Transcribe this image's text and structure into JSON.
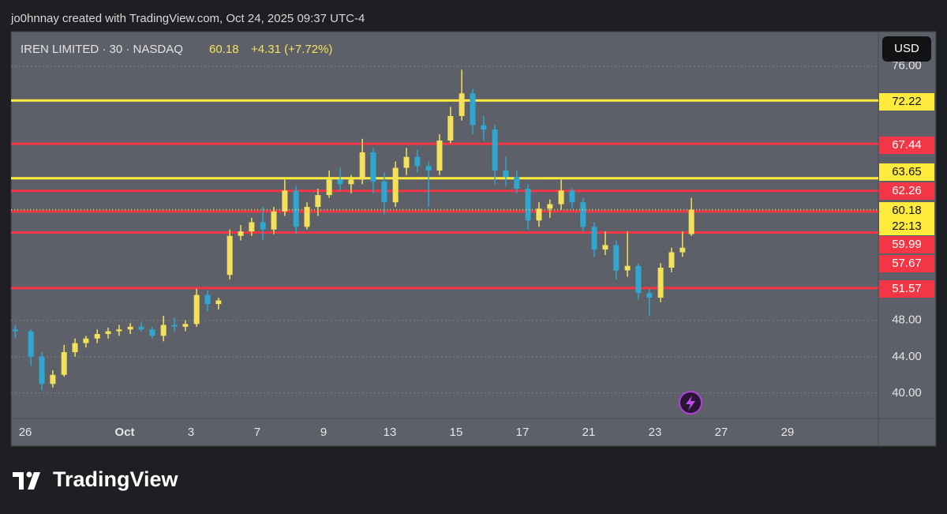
{
  "caption": "jo0hnnay created with TradingView.com, Oct 24, 2025 09:37 UTC-4",
  "brand": "TradingView",
  "chart_data": {
    "type": "candlestick",
    "title": "IREN LIMITED · 30 · NASDAQ",
    "last_price": 60.18,
    "change_label": "+4.31 (+7.72%)",
    "countdown": "22:13",
    "currency": "USD",
    "up_color": "#f3e15b",
    "down_color": "#2fa7cf",
    "grid": true,
    "ylim": [
      37.2,
      79.8
    ],
    "yticks": [
      {
        "value": 40,
        "label": "40.00"
      },
      {
        "value": 44,
        "label": "44.00"
      },
      {
        "value": 48,
        "label": "48.00"
      },
      {
        "value": 76,
        "label": "76.00"
      }
    ],
    "xlim": [
      -0.43,
      25.74
    ],
    "xticks": [
      {
        "value": 0,
        "label": "26"
      },
      {
        "value": 3,
        "label": "Oct"
      },
      {
        "value": 5,
        "label": "3"
      },
      {
        "value": 7,
        "label": "7"
      },
      {
        "value": 9,
        "label": "9"
      },
      {
        "value": 11,
        "label": "13"
      },
      {
        "value": 13,
        "label": "15"
      },
      {
        "value": 15,
        "label": "17"
      },
      {
        "value": 17,
        "label": "21"
      },
      {
        "value": 19,
        "label": "23"
      },
      {
        "value": 21,
        "label": "27"
      },
      {
        "value": 23,
        "label": "29"
      }
    ],
    "levels": [
      {
        "value": 72.22,
        "color": "#ffeb3b"
      },
      {
        "value": 67.44,
        "color": "#f23645"
      },
      {
        "value": 63.65,
        "color": "#ffeb3b"
      },
      {
        "value": 62.26,
        "color": "#f23645"
      },
      {
        "value": 59.99,
        "color": "#f23645"
      },
      {
        "value": 57.67,
        "color": "#f23645"
      },
      {
        "value": 51.57,
        "color": "#f23645"
      }
    ],
    "x": [
      -0.3,
      0.17,
      0.5,
      0.83,
      1.17,
      1.5,
      1.83,
      2.17,
      2.5,
      2.83,
      3.17,
      3.5,
      3.83,
      4.17,
      4.5,
      4.83,
      5.17,
      5.5,
      5.83,
      6.17,
      6.5,
      6.83,
      7.17,
      7.5,
      7.83,
      8.17,
      8.5,
      8.83,
      9.17,
      9.5,
      9.83,
      10.17,
      10.5,
      10.83,
      11.17,
      11.5,
      11.83,
      12.17,
      12.5,
      12.83,
      13.17,
      13.5,
      13.83,
      14.17,
      14.5,
      14.83,
      15.17,
      15.5,
      15.83,
      16.17,
      16.5,
      16.83,
      17.17,
      17.5,
      17.83,
      18.17,
      18.5,
      18.83,
      19.17,
      19.5,
      19.83,
      20.1
    ],
    "open": [
      47,
      46.8,
      44,
      41,
      42,
      44.5,
      45.5,
      46,
      46.5,
      46.8,
      47,
      47.3,
      47,
      46.3,
      47.5,
      47.3,
      47.6,
      50.8,
      49.8,
      53,
      57.3,
      57.8,
      58.8,
      58,
      60,
      62.3,
      58.3,
      60.5,
      61.8,
      63.5,
      63,
      63.5,
      66.5,
      63.3,
      61,
      64.8,
      66,
      65,
      64.5,
      67.8,
      70.5,
      73,
      69.5,
      69,
      64.5,
      63.8,
      62.5,
      59,
      60.3,
      60.8,
      62.3,
      61,
      58.3,
      55.8,
      56.3,
      53.5,
      54,
      51,
      50.5,
      53.8,
      55.5,
      57.5
    ],
    "high": [
      47.5,
      47,
      44.5,
      42.5,
      45.3,
      46,
      46.3,
      47,
      47.2,
      47.5,
      47.7,
      47.8,
      47.3,
      48.5,
      48.3,
      48,
      51.5,
      51.3,
      50.5,
      58,
      58.5,
      59.3,
      60.5,
      60.5,
      63.5,
      62.8,
      61,
      62.5,
      64.5,
      64.8,
      64,
      68,
      67,
      64.3,
      65.5,
      67,
      66.8,
      65.5,
      68.5,
      71.5,
      75.6,
      73.5,
      70.5,
      69.5,
      66,
      64.5,
      63,
      61,
      61.3,
      63.5,
      62.5,
      61.5,
      58.8,
      57.8,
      56.8,
      57.8,
      54.3,
      51.5,
      54.3,
      56,
      57.8,
      61.5
    ],
    "low": [
      46,
      43,
      40.3,
      40.6,
      41.8,
      44,
      45,
      45.5,
      46,
      46.3,
      46.5,
      46.8,
      46,
      45.7,
      46.8,
      46.8,
      47.3,
      49,
      49.2,
      52.5,
      56.8,
      57.3,
      56.8,
      57.5,
      59.5,
      57.5,
      58,
      59.5,
      61.5,
      62.3,
      62,
      63,
      62,
      59.7,
      60.5,
      64,
      64.3,
      60.5,
      64,
      67.5,
      70,
      68.5,
      67.8,
      63,
      62.8,
      62,
      58,
      58.3,
      59.3,
      60.2,
      60.3,
      57.8,
      55,
      55.2,
      52.5,
      52.8,
      50.3,
      48.5,
      50,
      53.3,
      55,
      57.3
    ],
    "close": [
      46.8,
      44,
      41,
      42,
      44.5,
      45.5,
      46,
      46.5,
      46.8,
      47,
      47.3,
      47,
      46.3,
      47.5,
      47.3,
      47.6,
      50.8,
      49.8,
      50.2,
      57.3,
      57.8,
      58.8,
      58,
      60,
      62.3,
      58.3,
      60.5,
      61.8,
      63.5,
      63,
      63.5,
      66.5,
      63.3,
      61,
      64.8,
      66,
      65,
      64.5,
      67.8,
      70.5,
      73,
      69.5,
      69,
      64.5,
      63.8,
      62.5,
      59,
      60.3,
      60.8,
      62.3,
      61,
      58.3,
      55.8,
      56.3,
      53.5,
      54,
      51,
      50.5,
      53.8,
      55.5,
      56,
      60.18
    ]
  }
}
